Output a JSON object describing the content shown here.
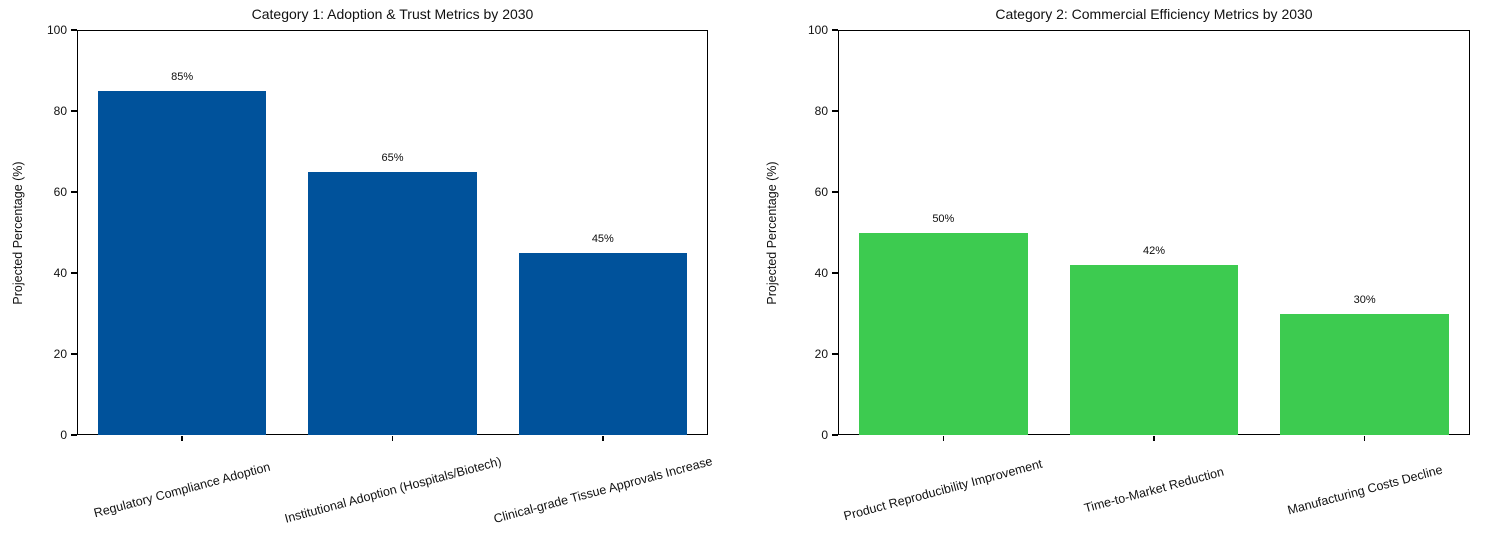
{
  "figure": {
    "background": "#ffffff",
    "text_color": "#111111"
  },
  "chart_data": [
    {
      "type": "bar",
      "title": "Category 1: Adoption & Trust Metrics by 2030",
      "categories": [
        "Regulatory Compliance Adoption",
        "Institutional Adoption (Hospitals/Biotech)",
        "Clinical-grade Tissue Approvals Increase"
      ],
      "values": [
        85,
        65,
        45
      ],
      "bar_labels": [
        "85%",
        "65%",
        "45%"
      ],
      "bar_color": "#00529B",
      "xlabel": "",
      "ylabel": "Projected Percentage (%)",
      "ylim": [
        0,
        100
      ],
      "yticks": [
        0,
        20,
        40,
        60,
        80,
        100
      ],
      "grid": false,
      "legend": "none",
      "xtick_rotation_deg": 15
    },
    {
      "type": "bar",
      "title": "Category 2: Commercial Efficiency Metrics by 2030",
      "categories": [
        "Product Reproducibility Improvement",
        "Time-to-Market Reduction",
        "Manufacturing Costs Decline"
      ],
      "values": [
        50,
        42,
        30
      ],
      "bar_labels": [
        "50%",
        "42%",
        "30%"
      ],
      "bar_color": "#3DCB50",
      "xlabel": "",
      "ylabel": "Projected Percentage (%)",
      "ylim": [
        0,
        100
      ],
      "yticks": [
        0,
        20,
        40,
        60,
        80,
        100
      ],
      "grid": false,
      "legend": "none",
      "xtick_rotation_deg": 15
    }
  ]
}
